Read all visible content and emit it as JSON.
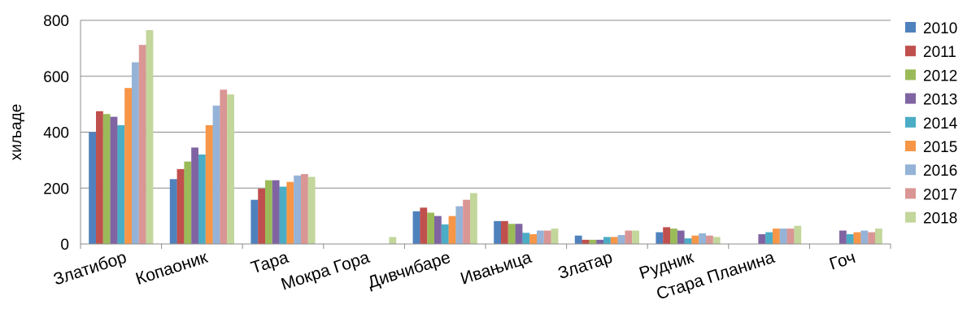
{
  "chart_data": {
    "type": "bar",
    "title": "",
    "xlabel": "",
    "ylabel": "хиљаде",
    "ylim": [
      0,
      800
    ],
    "yticks": [
      0,
      200,
      400,
      600,
      800
    ],
    "grid": true,
    "legend_position": "right",
    "categories": [
      "Златибор",
      "Копаоник",
      "Тара",
      "Мокра Гора",
      "Дивчибаре",
      "Ивањица",
      "Златар",
      "Рудник",
      "Стара Планина",
      "Гоч"
    ],
    "series": [
      {
        "name": "2010",
        "color": "#4F81BD",
        "values": [
          400,
          232,
          158,
          0,
          117,
          82,
          30,
          42,
          0,
          0
        ]
      },
      {
        "name": "2011",
        "color": "#C0504D",
        "values": [
          475,
          268,
          198,
          0,
          130,
          82,
          15,
          60,
          0,
          0
        ]
      },
      {
        "name": "2012",
        "color": "#9BBB59",
        "values": [
          465,
          295,
          228,
          0,
          112,
          72,
          15,
          55,
          0,
          0
        ]
      },
      {
        "name": "2013",
        "color": "#8064A2",
        "values": [
          455,
          345,
          228,
          0,
          100,
          72,
          15,
          48,
          35,
          48
        ]
      },
      {
        "name": "2014",
        "color": "#4BACC6",
        "values": [
          425,
          320,
          205,
          0,
          70,
          40,
          25,
          20,
          42,
          35
        ]
      },
      {
        "name": "2015",
        "color": "#F79646",
        "values": [
          558,
          425,
          222,
          0,
          100,
          35,
          25,
          30,
          55,
          42
        ]
      },
      {
        "name": "2016",
        "color": "#95B3D7",
        "values": [
          650,
          495,
          245,
          0,
          135,
          48,
          32,
          38,
          55,
          48
        ]
      },
      {
        "name": "2017",
        "color": "#D99694",
        "values": [
          712,
          552,
          250,
          0,
          158,
          48,
          48,
          30,
          55,
          42
        ]
      },
      {
        "name": "2018",
        "color": "#C3D69B",
        "values": [
          765,
          535,
          240,
          25,
          182,
          55,
          48,
          25,
          65,
          55
        ]
      }
    ]
  }
}
